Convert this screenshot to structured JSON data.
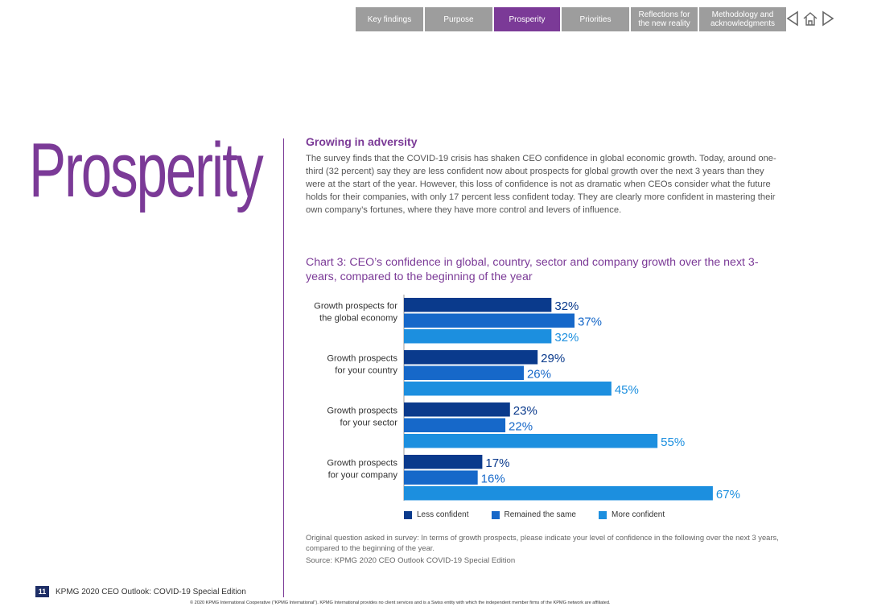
{
  "nav": {
    "tabs": [
      {
        "label": "Key findings",
        "active": false
      },
      {
        "label": "Purpose",
        "active": false
      },
      {
        "label": "Prosperity",
        "active": true
      },
      {
        "label": "Priorities",
        "active": false
      },
      {
        "label": "Reflections for the new reality",
        "active": false
      },
      {
        "label": "Methodology and acknowledgments",
        "active": false
      }
    ],
    "icons": [
      "prev-arrow-icon",
      "home-icon",
      "next-arrow-icon"
    ]
  },
  "page": {
    "title": "Prosperity",
    "subhead": "Growing in adversity",
    "intro": "The survey finds that the COVID-19 crisis has shaken CEO confidence in global economic growth. Today, around one-third (32 percent) say they are less confident now about prospects for global growth over the next 3 years than they were at the start of the year. However, this loss of confidence is not as dramatic when CEOs consider what the future holds for their companies, with only 17 percent less confident today. They are clearly more confident in mastering their own company’s fortunes, where they have more control and levers of influence.",
    "note": "Original question asked in survey: In terms of growth prospects, please indicate your level of confidence in the following over the next 3 years, compared to the beginning of the year.",
    "source": "Source: KPMG 2020 CEO Outlook COVID-19 Special Edition"
  },
  "footer": {
    "page_number": "11",
    "publication": "KPMG 2020 CEO Outlook: COVID-19 Special Edition",
    "copyright": "© 2020 KPMG International Cooperative (\"KPMG International\"). KPMG International provides no client services and is a Swiss entity with which the independent member firms of the KPMG network are affiliated."
  },
  "colors": {
    "accent": "#7b3a97",
    "less_confident": "#0a3a8c",
    "remained_same": "#1668c9",
    "more_confident": "#1c8fdf"
  },
  "chart_data": {
    "type": "bar",
    "orientation": "horizontal",
    "title": "Chart 3: CEO’s confidence in global, country, sector and company growth over the next 3-years, compared to the beginning of the year",
    "categories": [
      [
        "Growth prospects for",
        "the global economy"
      ],
      [
        "Growth prospects",
        "for your country"
      ],
      [
        "Growth prospects",
        "for your sector"
      ],
      [
        "Growth prospects",
        "for your company"
      ]
    ],
    "series": [
      {
        "name": "Less confident",
        "values": [
          32,
          29,
          23,
          17
        ]
      },
      {
        "name": "Remained the same",
        "values": [
          37,
          26,
          22,
          16
        ]
      },
      {
        "name": "More confident",
        "values": [
          32,
          45,
          55,
          67
        ]
      }
    ],
    "value_suffix": "%",
    "xlim": [
      0,
      100
    ],
    "grid": false,
    "legend_position": "bottom"
  }
}
